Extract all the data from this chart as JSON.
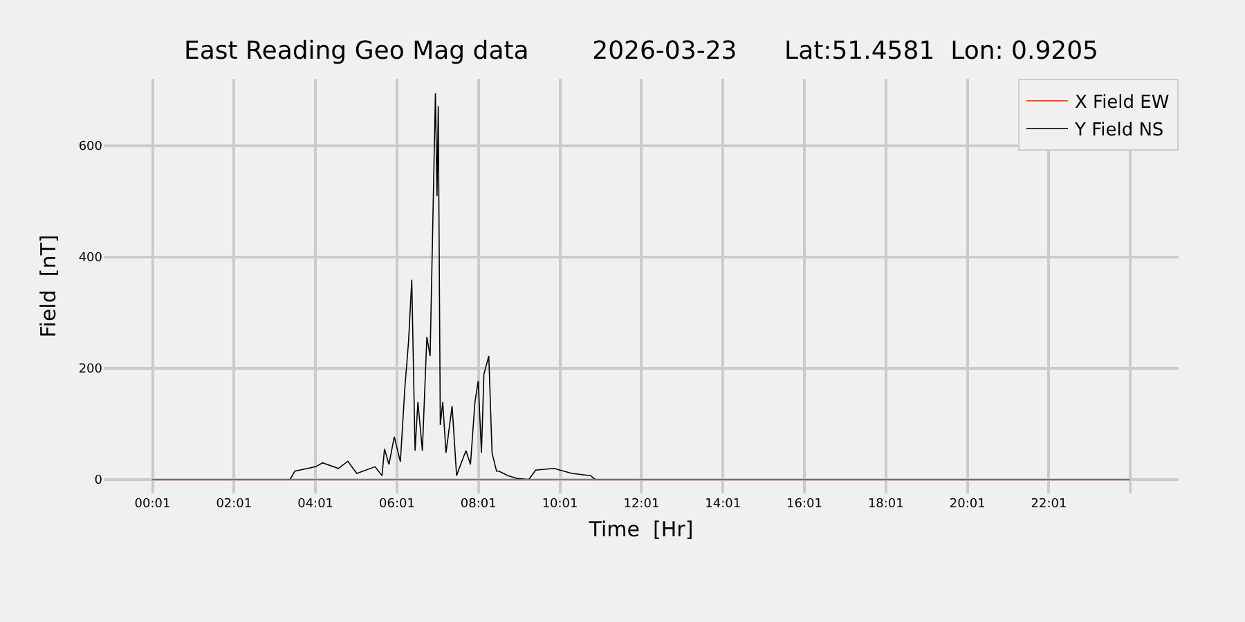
{
  "chart_data": {
    "type": "line",
    "title": "East Reading Geo Mag data        2026-03-23      Lat:51.4581  Lon: 0.9205",
    "xlabel": "Time  [Hr]",
    "ylabel": "Field  [nT]",
    "series": [
      {
        "name": "X Field EW",
        "color": "#e24a33",
        "x": [
          0.0167,
          24.0
        ],
        "values": [
          0,
          0
        ]
      },
      {
        "name": "Y Field NS",
        "color": "#000000",
        "x": [
          0.0167,
          3.39,
          3.51,
          4.02,
          4.19,
          4.58,
          4.81,
          5.03,
          5.48,
          5.65,
          5.71,
          5.82,
          5.95,
          6.1,
          6.21,
          6.3,
          6.38,
          6.46,
          6.53,
          6.64,
          6.75,
          6.83,
          6.89,
          6.96,
          7.0,
          7.03,
          7.08,
          7.14,
          7.22,
          7.37,
          7.48,
          7.56,
          7.71,
          7.82,
          7.93,
          8.01,
          8.09,
          8.15,
          8.27,
          8.35,
          8.46,
          8.52,
          8.74,
          8.96,
          9.25,
          9.42,
          9.87,
          10.31,
          10.77,
          10.88,
          24.0
        ],
        "values": [
          0,
          0,
          15,
          23,
          30,
          20,
          33,
          11,
          23,
          7,
          55,
          27,
          77,
          32,
          165,
          247,
          359,
          52,
          139,
          52,
          256,
          222,
          438,
          694,
          509,
          671,
          98,
          139,
          48,
          132,
          7,
          23,
          52,
          27,
          139,
          177,
          48,
          189,
          222,
          48,
          15,
          15,
          7,
          2,
          0,
          17,
          20,
          11,
          7,
          0,
          0
        ]
      }
    ],
    "xlim": [
      -1.18,
      25.2
    ],
    "xticks": [
      {
        "value": 0.0167,
        "label": "00:01"
      },
      {
        "value": 2.0167,
        "label": "02:01"
      },
      {
        "value": 4.0167,
        "label": "04:01"
      },
      {
        "value": 6.0167,
        "label": "06:01"
      },
      {
        "value": 8.0167,
        "label": "08:01"
      },
      {
        "value": 10.0167,
        "label": "10:01"
      },
      {
        "value": 12.0167,
        "label": "12:01"
      },
      {
        "value": 14.0167,
        "label": "14:01"
      },
      {
        "value": 16.0167,
        "label": "16:01"
      },
      {
        "value": 18.0167,
        "label": "18:01"
      },
      {
        "value": 20.0167,
        "label": "20:01"
      },
      {
        "value": 22.0167,
        "label": "22:01"
      },
      {
        "value": 24.0167,
        "label": null
      }
    ],
    "ylim": [
      -25,
      720
    ],
    "yticks": [
      0,
      200,
      400,
      600
    ],
    "grid": true,
    "legend": "top right",
    "marker": "none",
    "line_style": "solid"
  }
}
